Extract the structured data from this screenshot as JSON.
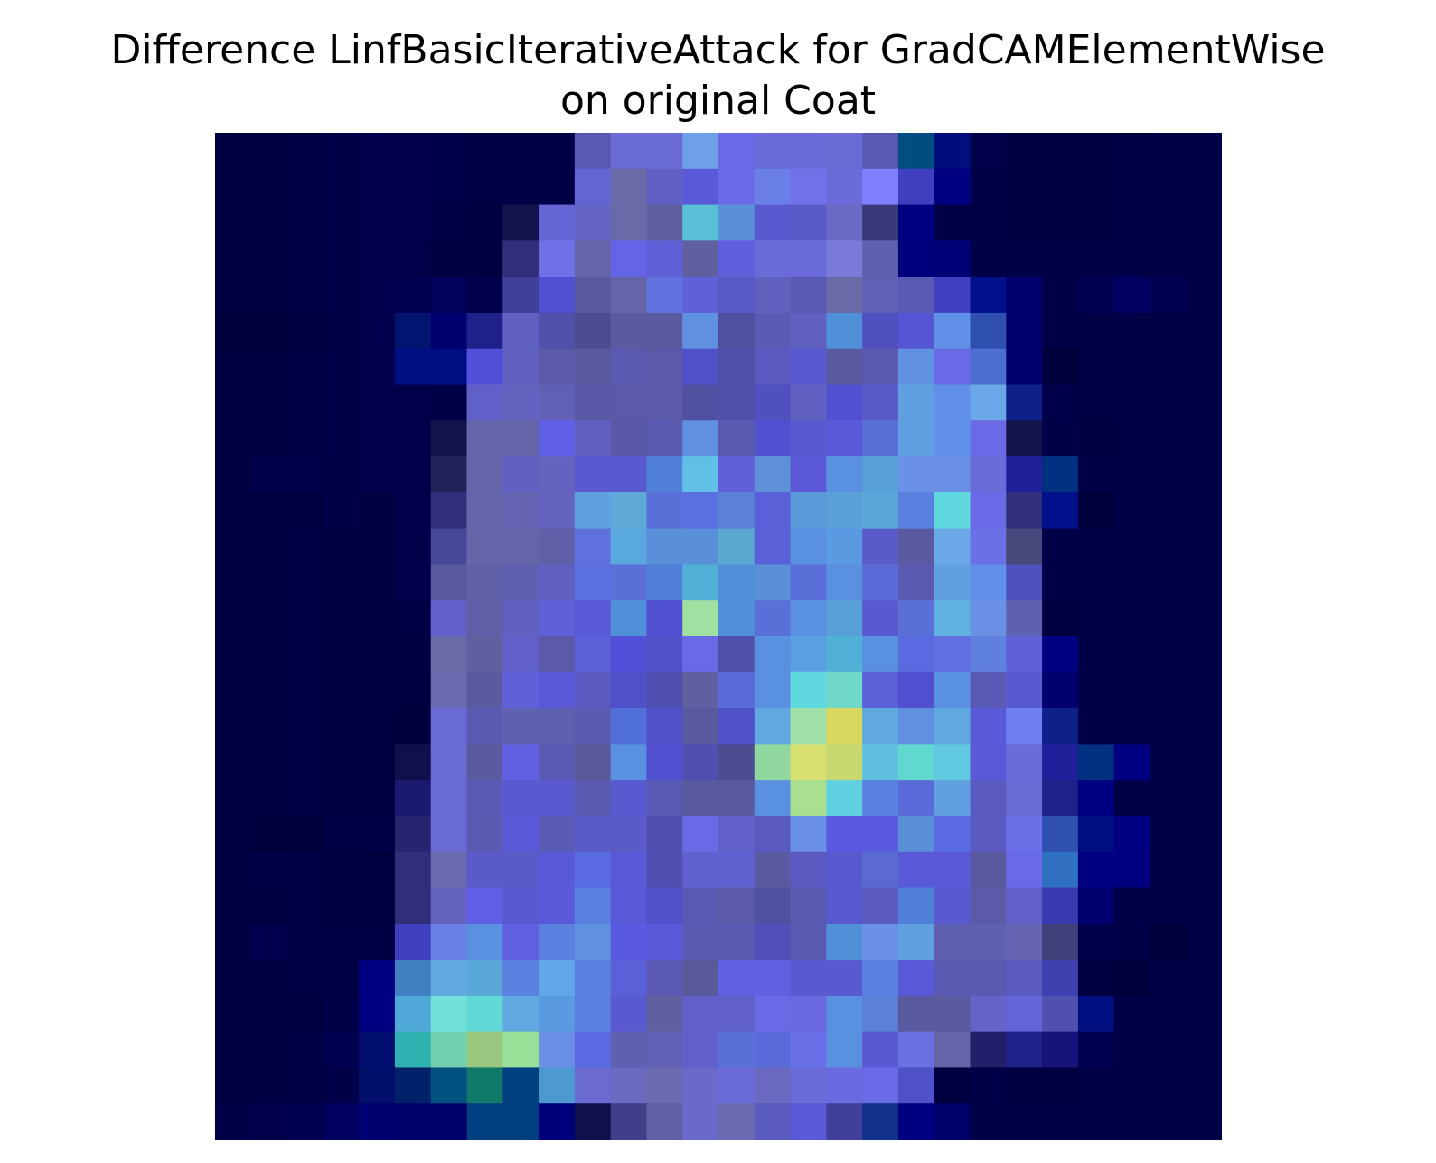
{
  "chart_data": {
    "type": "heatmap",
    "title_line1": "Difference LinfBasicIterativeAttack for GradCAMElementWise",
    "title_line2": "on original Coat",
    "rows": 28,
    "cols": 28,
    "axes_visible": false,
    "grid": false,
    "colors": [
      [
        "#000043",
        "#000043",
        "#000045",
        "#000049",
        "#00004c",
        "#00004b",
        "#00004a",
        "#000047",
        "#000047",
        "#000047",
        "#5959b5",
        "#6a6ad4",
        "#6a6ad4",
        "#6ea0e8",
        "#6a6ae6",
        "#6a6ad8",
        "#6a6ad8",
        "#6a6ad4",
        "#5959b5",
        "#004d7f",
        "#000e7c",
        "#00004b",
        "#000041",
        "#000041",
        "#000041",
        "#000044",
        "#000047",
        "#000047"
      ],
      [
        "#000043",
        "#000043",
        "#000045",
        "#000049",
        "#00004c",
        "#00004b",
        "#00004a",
        "#000047",
        "#000045",
        "#000047",
        "#6464d4",
        "#6a6aa8",
        "#6060c4",
        "#5a5ad8",
        "#6a6ae6",
        "#6a80e8",
        "#7272e8",
        "#6a6ad8",
        "#8080ff",
        "#4040bf",
        "#000080",
        "#000047",
        "#000042",
        "#000041",
        "#000041",
        "#000044",
        "#000047",
        "#000047"
      ],
      [
        "#000043",
        "#000043",
        "#000045",
        "#000049",
        "#00004c",
        "#00004b",
        "#000047",
        "#000040",
        "#14144c",
        "#6464d4",
        "#6464c4",
        "#6a6aa8",
        "#6060a0",
        "#5ac0d8",
        "#5a90d8",
        "#5a5ad0",
        "#5a5ac8",
        "#6a6ac4",
        "#3a3a7a",
        "#000080",
        "#000049",
        "#000045",
        "#000043",
        "#000043",
        "#000043",
        "#000046",
        "#000047",
        "#000047"
      ],
      [
        "#000043",
        "#000043",
        "#000045",
        "#000049",
        "#00004c",
        "#00004b",
        "#000040",
        "#000040",
        "#30307a",
        "#7070e8",
        "#6464a8",
        "#6464e6",
        "#6060d8",
        "#6060a0",
        "#6060dc",
        "#6a6ad8",
        "#6a6ad8",
        "#7a7ad8",
        "#6060b0",
        "#00007c",
        "#000077",
        "#000049",
        "#000046",
        "#000046",
        "#000047",
        "#000049",
        "#000047",
        "#000047"
      ],
      [
        "#000043",
        "#000043",
        "#000045",
        "#000049",
        "#00004c",
        "#000050",
        "#00005d",
        "#00004c",
        "#40409a",
        "#5050d0",
        "#5959a0",
        "#6464a8",
        "#6070dc",
        "#6060d8",
        "#5a5ac8",
        "#6060bf",
        "#5a5ab5",
        "#6a6aa8",
        "#6060b5",
        "#5959b5",
        "#4040c0",
        "#00108a",
        "#000070",
        "#000049",
        "#000052",
        "#000060",
        "#000050",
        "#000047"
      ],
      [
        "#00003c",
        "#00003c",
        "#000040",
        "#000045",
        "#00004c",
        "#001470",
        "#000070",
        "#20208a",
        "#6060c0",
        "#5050a8",
        "#4c4c90",
        "#5a5aa0",
        "#5a5aa0",
        "#6090e0",
        "#5050a0",
        "#5a5ab5",
        "#6060c0",
        "#5090d8",
        "#5050c0",
        "#5656d4",
        "#6090e8",
        "#3050b0",
        "#000070",
        "#000049",
        "#000047",
        "#000047",
        "#000047",
        "#000047"
      ],
      [
        "#000043",
        "#000043",
        "#000045",
        "#000049",
        "#00004c",
        "#000e84",
        "#000e84",
        "#5050d8",
        "#6060c0",
        "#5a5aa8",
        "#5959a0",
        "#5a5ab0",
        "#5a5aa8",
        "#5050c8",
        "#5050a8",
        "#5a5ac0",
        "#5a5ad0",
        "#5a5aa0",
        "#5a5ab0",
        "#6090e0",
        "#6a6ae6",
        "#4c70d0",
        "#000070",
        "#00003a",
        "#000045",
        "#000047",
        "#000047",
        "#000047"
      ],
      [
        "#000043",
        "#000043",
        "#000045",
        "#000049",
        "#00004c",
        "#00004b",
        "#000047",
        "#6060c8",
        "#6464c0",
        "#6060b5",
        "#5959a8",
        "#5a5aa8",
        "#5a5aa8",
        "#5050a0",
        "#5050a8",
        "#5050c0",
        "#6060c0",
        "#5050d0",
        "#5a5ac8",
        "#60a0e0",
        "#6090e8",
        "#6aa8e8",
        "#10208a",
        "#00004a",
        "#000045",
        "#000047",
        "#000047",
        "#000047"
      ],
      [
        "#000043",
        "#000043",
        "#000045",
        "#000049",
        "#00004c",
        "#00004b",
        "#14144c",
        "#6464a8",
        "#6464a8",
        "#6060e6",
        "#6060c0",
        "#5959a8",
        "#5a5ab0",
        "#6090e0",
        "#5a5ab0",
        "#5050d0",
        "#5959d0",
        "#5a5ad8",
        "#5a70d8",
        "#60a0e0",
        "#6090e8",
        "#6a6ae6",
        "#14144c",
        "#000049",
        "#000040",
        "#000044",
        "#000047",
        "#000047"
      ],
      [
        "#000043",
        "#00004a",
        "#00004a",
        "#000049",
        "#00004c",
        "#00004b",
        "#22225a",
        "#6464a8",
        "#6060c0",
        "#6464c0",
        "#5a5ad0",
        "#5a5ad0",
        "#5080d8",
        "#60c0e8",
        "#6060d8",
        "#6090d8",
        "#5a5ad8",
        "#5a90e0",
        "#5aa0d8",
        "#6a90e8",
        "#6a90e6",
        "#6a6ad8",
        "#20209a",
        "#003080",
        "#000049",
        "#000047",
        "#000047",
        "#000047"
      ],
      [
        "#000043",
        "#000043",
        "#000040",
        "#000049",
        "#000040",
        "#00004b",
        "#30307a",
        "#6464a8",
        "#6464b0",
        "#6464c0",
        "#60a0e0",
        "#60a8d8",
        "#5a70d8",
        "#5a70e0",
        "#5a80d8",
        "#5a60d8",
        "#5a9ad8",
        "#5aa0d8",
        "#5aa8d8",
        "#5a80e0",
        "#60d8e0",
        "#6a6ae6",
        "#30307a",
        "#00108a",
        "#00003c",
        "#000047",
        "#000047",
        "#000047"
      ],
      [
        "#000043",
        "#000043",
        "#000045",
        "#000040",
        "#000040",
        "#00004b",
        "#48489a",
        "#6464a8",
        "#6464a8",
        "#6060a8",
        "#6070dc",
        "#5aa8e0",
        "#5a90d8",
        "#5a90d8",
        "#5aa8d0",
        "#5a60d8",
        "#5a90e0",
        "#5a9ae0",
        "#5a5ac8",
        "#5a5aa0",
        "#6aa8e8",
        "#6a70e6",
        "#48487a",
        "#000049",
        "#000049",
        "#000047",
        "#000047",
        "#000047"
      ],
      [
        "#000043",
        "#000043",
        "#000045",
        "#000040",
        "#000040",
        "#00004b",
        "#5959a0",
        "#6060a8",
        "#6060b0",
        "#6060c0",
        "#5a70e0",
        "#5a70d8",
        "#5080d8",
        "#50b0d8",
        "#5090d8",
        "#5a90d8",
        "#5a70d8",
        "#5a90e0",
        "#5a6ad8",
        "#5a5ab0",
        "#60a0e0",
        "#6090e8",
        "#5050c0",
        "#000049",
        "#000047",
        "#000047",
        "#000047",
        "#000047"
      ],
      [
        "#000043",
        "#000043",
        "#000045",
        "#000040",
        "#000040",
        "#000047",
        "#6060c8",
        "#6060a8",
        "#6060c0",
        "#6060d8",
        "#5a5ad8",
        "#5090d8",
        "#5050d0",
        "#a0e0a0",
        "#5090d8",
        "#5a70d8",
        "#5a90e0",
        "#5aa0d8",
        "#5a5ad0",
        "#5a70d8",
        "#60b0e0",
        "#6a90e6",
        "#6060b0",
        "#000040",
        "#000047",
        "#000047",
        "#000047",
        "#000047"
      ],
      [
        "#000043",
        "#000043",
        "#000045",
        "#000040",
        "#000040",
        "#000040",
        "#6a6aa8",
        "#6060a0",
        "#6060c8",
        "#5a5aa8",
        "#5a60d8",
        "#5050d8",
        "#5050c8",
        "#6a6ae6",
        "#5050a8",
        "#5a90e0",
        "#5aa0e0",
        "#50b0d8",
        "#5a90e0",
        "#5a6ae0",
        "#6070e0",
        "#6080e0",
        "#6060d8",
        "#000080",
        "#000049",
        "#000047",
        "#000047",
        "#000047"
      ],
      [
        "#000043",
        "#000043",
        "#000045",
        "#000040",
        "#000040",
        "#000040",
        "#6a6ab0",
        "#5a5aa0",
        "#6060d8",
        "#5a5ad8",
        "#5a5ac0",
        "#5050c8",
        "#5050b0",
        "#6060a0",
        "#5a6ad8",
        "#5a90e0",
        "#60d8e0",
        "#70d8c8",
        "#5a60d8",
        "#5050d0",
        "#5a90e0",
        "#5a5ab5",
        "#5a5ad0",
        "#000070",
        "#000049",
        "#000047",
        "#000047",
        "#000047"
      ],
      [
        "#000043",
        "#000043",
        "#000045",
        "#000040",
        "#000040",
        "#00003c",
        "#6a6ad4",
        "#5a5ab0",
        "#6060b0",
        "#6060b0",
        "#5a5ab0",
        "#5070d8",
        "#5050c8",
        "#5959a0",
        "#5050c8",
        "#60a8e0",
        "#a0e0a8",
        "#d8d860",
        "#60a8e0",
        "#6090e0",
        "#60a8e0",
        "#5a5ad8",
        "#7080f0",
        "#10208a",
        "#000049",
        "#000047",
        "#000047",
        "#000047"
      ],
      [
        "#000043",
        "#000040",
        "#000045",
        "#000040",
        "#000040",
        "#10104c",
        "#6a6ad4",
        "#5a5aa0",
        "#6060e0",
        "#5a5ab5",
        "#5a5a9a",
        "#5a90e0",
        "#5050d0",
        "#5050b0",
        "#4c4c90",
        "#90d8a0",
        "#d8e070",
        "#c8d870",
        "#60c0e0",
        "#60d8d0",
        "#60c8e0",
        "#5a5ad8",
        "#6a6ad8",
        "#20209a",
        "#003080",
        "#000080",
        "#000049",
        "#000047"
      ],
      [
        "#000043",
        "#000043",
        "#000045",
        "#000040",
        "#000040",
        "#1a1a70",
        "#6a6ad4",
        "#5a5ab5",
        "#5a5ad0",
        "#5a5ad0",
        "#5a5ab0",
        "#5a5ad0",
        "#5a5ab5",
        "#5a5aa0",
        "#5a5aa0",
        "#5a90e0",
        "#a8e090",
        "#60d0e0",
        "#5a80e0",
        "#5a6ad8",
        "#60a0e0",
        "#5a5ac0",
        "#6a6ad4",
        "#20208a",
        "#000080",
        "#000049",
        "#000047",
        "#000047"
      ],
      [
        "#000043",
        "#00003c",
        "#00003c",
        "#000045",
        "#000049",
        "#262670",
        "#6a6ad4",
        "#5a5ab0",
        "#5a5ad8",
        "#5a5ab5",
        "#5a5ac8",
        "#5a5ac8",
        "#5050b0",
        "#6a6ae6",
        "#6060c8",
        "#5a5ac0",
        "#6a90e8",
        "#5a5ae0",
        "#5a5ae0",
        "#5a90d8",
        "#5a6ae0",
        "#5a5ac0",
        "#6a70e8",
        "#3050b0",
        "#001080",
        "#000080",
        "#000049",
        "#000047"
      ],
      [
        "#000043",
        "#000049",
        "#000045",
        "#000040",
        "#000040",
        "#30307a",
        "#6a6ab0",
        "#5a5ac8",
        "#5a5ac8",
        "#5a5ad8",
        "#5a6ae0",
        "#5a5ad8",
        "#5050b0",
        "#6060d0",
        "#6060d0",
        "#5a5aa0",
        "#5a5ac0",
        "#5a5ad0",
        "#5a6ad0",
        "#5a5ad8",
        "#5a5ad8",
        "#5a5aa0",
        "#6a6ae6",
        "#3070c0",
        "#000080",
        "#000080",
        "#000047",
        "#000047"
      ],
      [
        "#000043",
        "#000043",
        "#000045",
        "#000040",
        "#000040",
        "#30307a",
        "#6464c0",
        "#6060e6",
        "#5a5ad0",
        "#5a5ad8",
        "#5a80e0",
        "#5a5ad8",
        "#5050c8",
        "#5a5ab5",
        "#5a5aa8",
        "#5050a0",
        "#5a5ab0",
        "#5a5ad0",
        "#5a5ac0",
        "#5080d8",
        "#5a5ad0",
        "#5a5aa8",
        "#6060c8",
        "#3a3ab0",
        "#000070",
        "#000049",
        "#000047",
        "#000047"
      ],
      [
        "#000043",
        "#00004c",
        "#000045",
        "#000045",
        "#000045",
        "#4040bf",
        "#6a80e6",
        "#5a90e0",
        "#6060e0",
        "#5a80e0",
        "#6090e0",
        "#5a5ae0",
        "#5a5ad8",
        "#5a5ab0",
        "#5a5ab0",
        "#5050b8",
        "#5a5ab0",
        "#5090d8",
        "#6a90e8",
        "#60a0e0",
        "#6060b0",
        "#6060b0",
        "#6464b0",
        "#40407a",
        "#00004a",
        "#000049",
        "#00003c",
        "#000047"
      ],
      [
        "#000043",
        "#000043",
        "#000045",
        "#000045",
        "#000080",
        "#4080c0",
        "#60a8e0",
        "#5aa8d8",
        "#5a80e0",
        "#60a8e8",
        "#5a80e0",
        "#5a60d8",
        "#5a5ab5",
        "#5a5a9a",
        "#6060e0",
        "#6060e0",
        "#5a5ad0",
        "#5a5ad0",
        "#5a80e0",
        "#5a5ad8",
        "#5a5ab0",
        "#5a5ab0",
        "#5a5ac0",
        "#4040b0",
        "#000040",
        "#00003c",
        "#000047",
        "#000047"
      ],
      [
        "#000043",
        "#000040",
        "#000040",
        "#000049",
        "#000080",
        "#50a8d8",
        "#70e0d8",
        "#60d8d8",
        "#60a8e0",
        "#5a9ae0",
        "#5a80e0",
        "#5a5ad0",
        "#6060a0",
        "#6060c8",
        "#6060c8",
        "#6a6ae6",
        "#6a6ae0",
        "#5a90e0",
        "#5a80d8",
        "#5a5aa0",
        "#5a5aa0",
        "#6464c8",
        "#6464d8",
        "#5050b0",
        "#001080",
        "#000049",
        "#000047",
        "#000047"
      ],
      [
        "#000043",
        "#000043",
        "#000045",
        "#000050",
        "#000e70",
        "#30b0b0",
        "#70d0b0",
        "#98c880",
        "#98e098",
        "#6a90e8",
        "#5a6ae0",
        "#6060b0",
        "#6060b5",
        "#6060c8",
        "#5a70d8",
        "#5a6ad8",
        "#6a70e8",
        "#5a90e0",
        "#5a5ad0",
        "#6a70e0",
        "#6464a8",
        "#20206a",
        "#20208a",
        "#14147a",
        "#000050",
        "#000049",
        "#000047",
        "#000047"
      ],
      [
        "#000043",
        "#000043",
        "#000045",
        "#000049",
        "#00106a",
        "#00206a",
        "#005080",
        "#107a6a",
        "#004080",
        "#4c9ad0",
        "#6a6ad0",
        "#6a6ac0",
        "#6a6ab0",
        "#6a6ac8",
        "#6a6ad8",
        "#6a6ac0",
        "#6a6ad8",
        "#6a6ae0",
        "#6a6ae6",
        "#5050c8",
        "#000040",
        "#000049",
        "#000040",
        "#000040",
        "#000047",
        "#000049",
        "#000047",
        "#000047"
      ],
      [
        "#000048",
        "#00004c",
        "#000050",
        "#000060",
        "#000070",
        "#00006a",
        "#00006a",
        "#004080",
        "#004080",
        "#00007a",
        "#10104c",
        "#40408a",
        "#6060a8",
        "#6a6ac8",
        "#6a6ab0",
        "#5a5ac0",
        "#5a5ad8",
        "#40409a",
        "#10308a",
        "#000080",
        "#00006a",
        "#000049",
        "#000045",
        "#000047",
        "#000047",
        "#000047",
        "#000047",
        "#000047"
      ]
    ]
  }
}
